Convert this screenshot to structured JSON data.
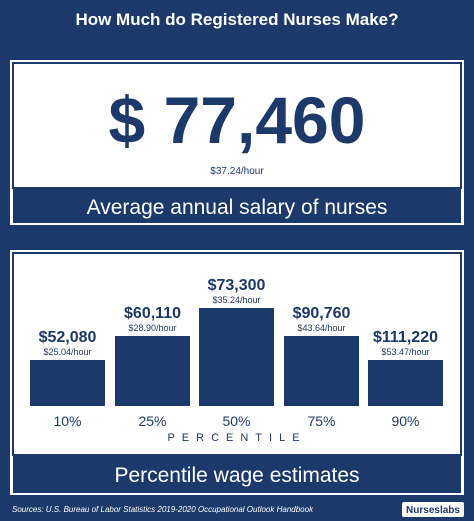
{
  "header": {
    "title": "How Much do Registered Nurses Make?"
  },
  "average": {
    "salary": "$ 77,460",
    "hourly": "$37.24/hour",
    "caption": "Average annual salary of nurses"
  },
  "percentiles": {
    "items": [
      {
        "salary": "$52,080",
        "hourly": "$25.04/hour",
        "percentile": "10%"
      },
      {
        "salary": "$60,110",
        "hourly": "$28.90/hour",
        "percentile": "25%"
      },
      {
        "salary": "$73,300",
        "hourly": "$35.24/hour",
        "percentile": "50%"
      },
      {
        "salary": "$90,760",
        "hourly": "$43.64/hour",
        "percentile": "75%"
      },
      {
        "salary": "$111,220",
        "hourly": "$53.47/hour",
        "percentile": "90%"
      }
    ],
    "axis_label": "PERCENTILE",
    "caption": "Percentile wage estimates"
  },
  "footer": {
    "source": "Sources: U.S. Bureau of Labor Statistics 2019-2020 Occupational Outlook Handbook",
    "logo": "Nurseslabs"
  }
}
